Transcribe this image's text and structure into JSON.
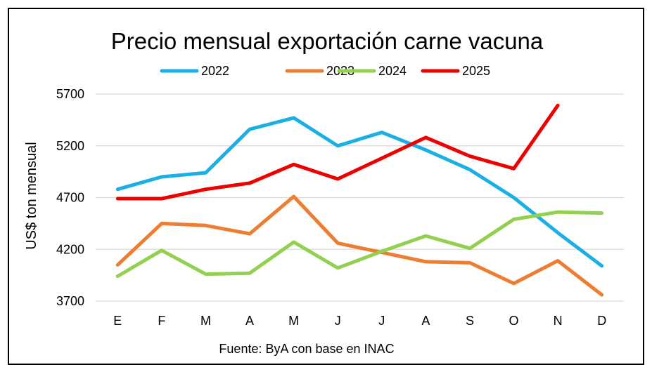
{
  "chart_data": {
    "type": "line",
    "title": "Precio mensual exportación carne vacuna",
    "xlabel": "",
    "ylabel": "US$ ton mensual",
    "source": "Fuente: ByA con base en INAC",
    "categories": [
      "E",
      "F",
      "M",
      "A",
      "M",
      "J",
      "J",
      "A",
      "S",
      "O",
      "N",
      "D"
    ],
    "yticks": [
      3700,
      4200,
      4700,
      5200,
      5700
    ],
    "ylim": [
      3700,
      5700
    ],
    "grid": true,
    "legend_position": "top",
    "series": [
      {
        "name": "2022",
        "color": "#1ab0e6",
        "values": [
          4780,
          4900,
          4940,
          5360,
          5470,
          5200,
          5330,
          5160,
          4970,
          4700,
          4360,
          4040
        ]
      },
      {
        "name": "2023",
        "color": "#ed7d31",
        "values": [
          4050,
          4450,
          4430,
          4350,
          4710,
          4260,
          4170,
          4080,
          4070,
          3870,
          4090,
          3760
        ]
      },
      {
        "name": "2024",
        "color": "#92d050",
        "values": [
          3940,
          4190,
          3960,
          3970,
          4270,
          4020,
          4180,
          4330,
          4210,
          4490,
          4560,
          4550
        ]
      },
      {
        "name": "2025",
        "color": "#ee0000",
        "values": [
          4690,
          4690,
          4780,
          4840,
          5020,
          4880,
          5080,
          5280,
          5100,
          4980,
          5590,
          null
        ]
      }
    ]
  }
}
